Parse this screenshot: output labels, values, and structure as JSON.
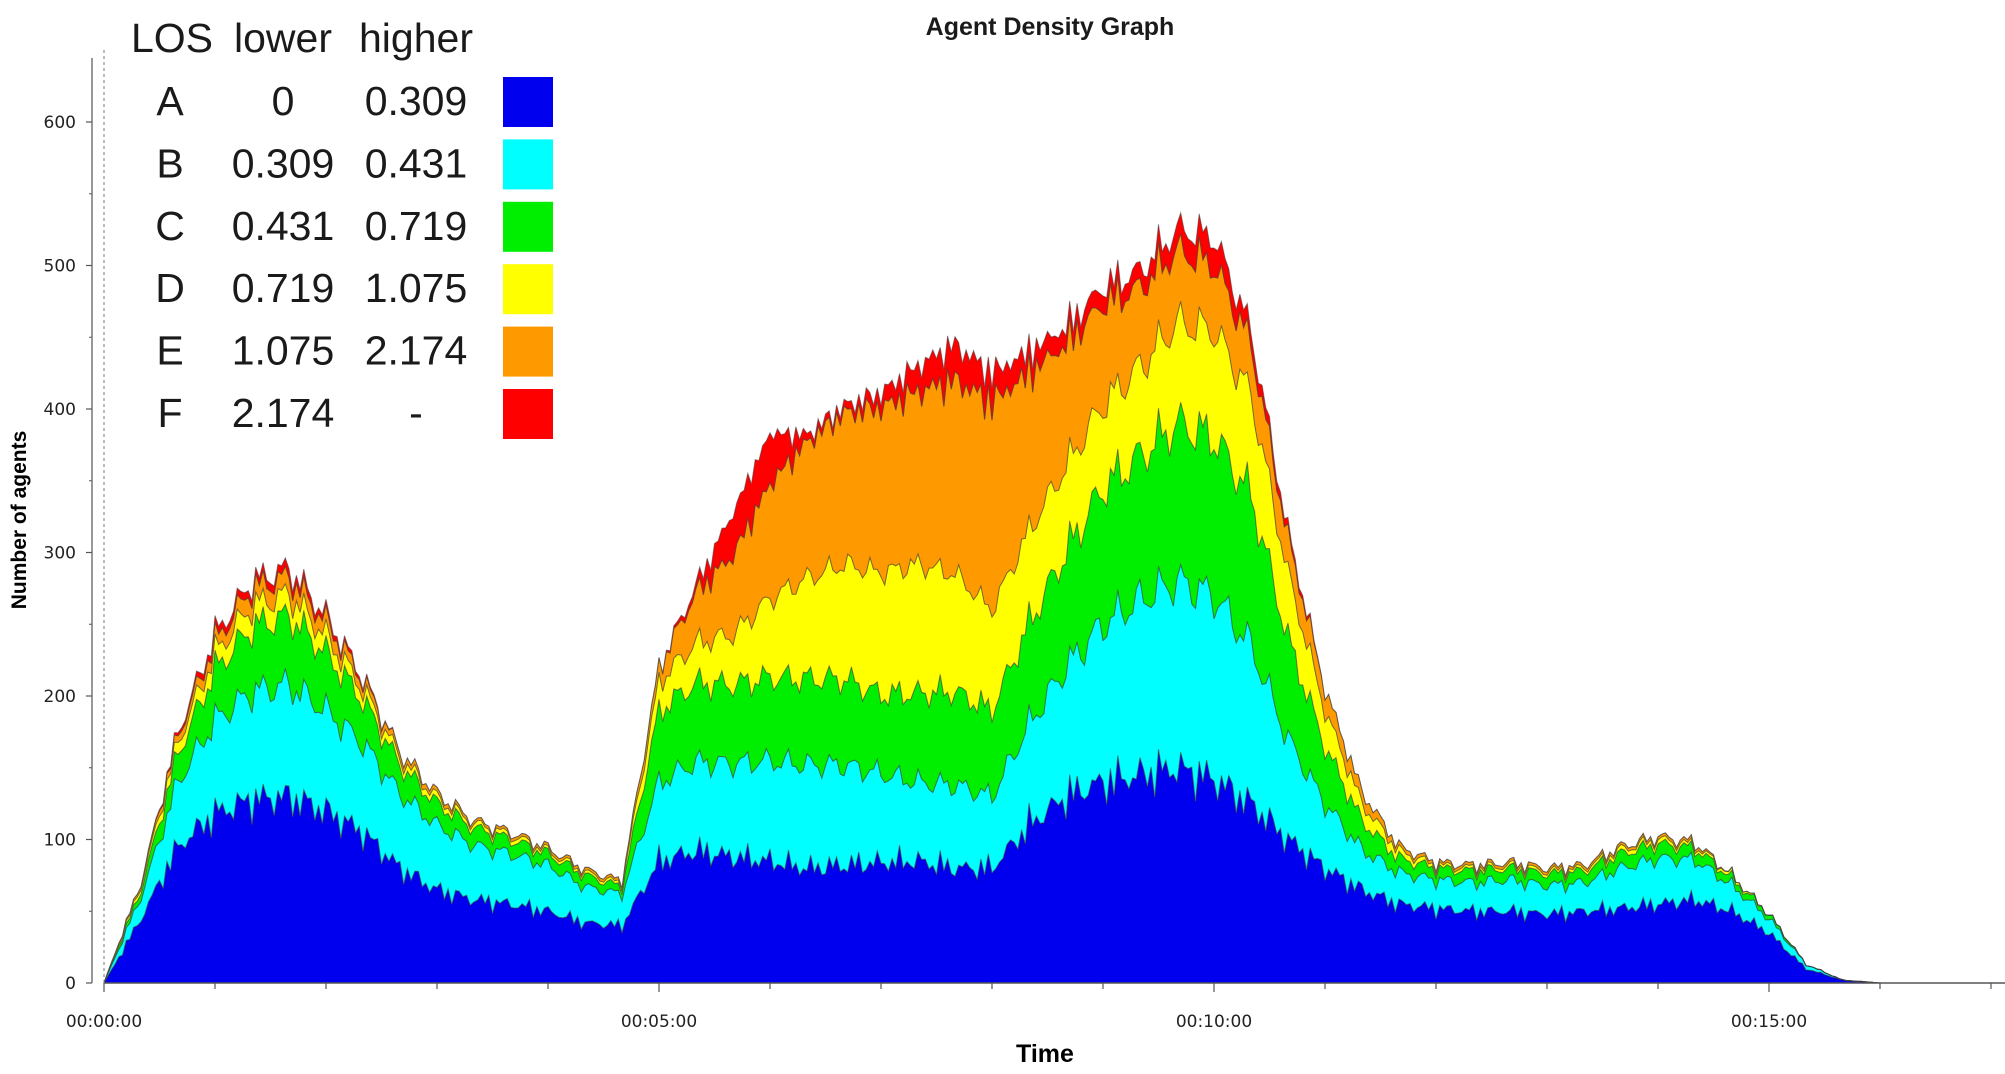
{
  "chart_data": {
    "type": "area",
    "stacked": true,
    "title": "Agent Density Graph",
    "xlabel": "Time",
    "ylabel": "Number of agents",
    "xlim_seconds": [
      0,
      1020
    ],
    "ylim": [
      0,
      650
    ],
    "x_ticks": [
      "00:00:00",
      "00:05:00",
      "00:10:00",
      "00:15:00"
    ],
    "y_ticks": [
      "0",
      "100",
      "200",
      "300",
      "400",
      "500",
      "600"
    ],
    "x_seconds": [
      0,
      20,
      40,
      60,
      80,
      100,
      120,
      140,
      160,
      180,
      200,
      220,
      240,
      260,
      280,
      300,
      320,
      340,
      360,
      380,
      400,
      420,
      440,
      460,
      480,
      500,
      520,
      540,
      560,
      580,
      600,
      620,
      640,
      660,
      680,
      700,
      720,
      740,
      760,
      780,
      800,
      820,
      840,
      860,
      880,
      900,
      920,
      940,
      960,
      980,
      1000,
      1020
    ],
    "series": [
      {
        "name": "A",
        "color": "#0000ee",
        "values": [
          0,
          45,
          95,
          118,
          128,
          130,
          120,
          105,
          80,
          65,
          58,
          55,
          50,
          42,
          40,
          85,
          92,
          88,
          85,
          80,
          82,
          84,
          85,
          80,
          80,
          110,
          130,
          140,
          145,
          150,
          142,
          125,
          100,
          80,
          65,
          55,
          52,
          50,
          50,
          48,
          50,
          52,
          55,
          58,
          50,
          35,
          10,
          2,
          0,
          0,
          0,
          0
        ]
      },
      {
        "name": "B",
        "color": "#00ffff",
        "values": [
          0,
          15,
          45,
          65,
          75,
          78,
          70,
          62,
          52,
          45,
          38,
          35,
          32,
          25,
          22,
          55,
          62,
          65,
          70,
          72,
          70,
          62,
          55,
          58,
          50,
          70,
          90,
          110,
          122,
          130,
          128,
          110,
          70,
          45,
          28,
          22,
          20,
          20,
          22,
          20,
          20,
          28,
          32,
          28,
          18,
          10,
          3,
          0,
          0,
          0,
          0,
          0
        ]
      },
      {
        "name": "C",
        "color": "#00ee00",
        "values": [
          0,
          5,
          20,
          35,
          45,
          48,
          40,
          30,
          20,
          15,
          12,
          10,
          8,
          8,
          5,
          50,
          55,
          55,
          58,
          60,
          60,
          55,
          62,
          65,
          60,
          70,
          80,
          95,
          100,
          110,
          110,
          105,
          70,
          40,
          20,
          10,
          8,
          8,
          8,
          8,
          8,
          10,
          10,
          8,
          5,
          3,
          0,
          0,
          0,
          0,
          0,
          0
        ]
      },
      {
        "name": "D",
        "color": "#ffff00",
        "values": [
          0,
          3,
          8,
          12,
          15,
          15,
          12,
          8,
          5,
          4,
          3,
          3,
          2,
          2,
          2,
          20,
          28,
          35,
          55,
          70,
          80,
          85,
          90,
          82,
          70,
          65,
          60,
          58,
          62,
          70,
          75,
          70,
          45,
          25,
          12,
          5,
          2,
          2,
          2,
          2,
          2,
          3,
          3,
          2,
          2,
          0,
          0,
          0,
          0,
          0,
          0,
          0
        ]
      },
      {
        "name": "E",
        "color": "#ff9900",
        "values": [
          0,
          2,
          5,
          8,
          12,
          12,
          10,
          6,
          4,
          3,
          2,
          2,
          2,
          2,
          2,
          10,
          35,
          55,
          80,
          95,
          105,
          115,
          120,
          135,
          145,
          110,
          85,
          70,
          55,
          50,
          45,
          35,
          25,
          15,
          8,
          3,
          2,
          2,
          2,
          2,
          2,
          2,
          2,
          2,
          0,
          0,
          0,
          0,
          0,
          0,
          0,
          0
        ]
      },
      {
        "name": "F",
        "color": "#ff0000",
        "values": [
          0,
          0,
          2,
          5,
          5,
          6,
          4,
          2,
          0,
          0,
          0,
          0,
          0,
          0,
          0,
          0,
          5,
          30,
          35,
          5,
          5,
          10,
          18,
          25,
          20,
          15,
          12,
          12,
          12,
          15,
          20,
          10,
          5,
          0,
          0,
          0,
          0,
          0,
          0,
          0,
          0,
          0,
          0,
          0,
          0,
          0,
          0,
          0,
          0,
          0,
          0,
          0
        ]
      }
    ],
    "legend": {
      "placement": "top-left",
      "headers": [
        "LOS",
        "lower",
        "higher"
      ],
      "rows": [
        {
          "los": "A",
          "lower": "0",
          "higher": "0.309",
          "color": "#0000ee"
        },
        {
          "los": "B",
          "lower": "0.309",
          "higher": "0.431",
          "color": "#00ffff"
        },
        {
          "los": "C",
          "lower": "0.431",
          "higher": "0.719",
          "color": "#00ee00"
        },
        {
          "los": "D",
          "lower": "0.719",
          "higher": "1.075",
          "color": "#ffff00"
        },
        {
          "los": "E",
          "lower": "1.075",
          "higher": "2.174",
          "color": "#ff9900"
        },
        {
          "los": "F",
          "lower": "2.174",
          "higher": "-",
          "color": "#ff0000"
        }
      ]
    },
    "grid": false
  }
}
